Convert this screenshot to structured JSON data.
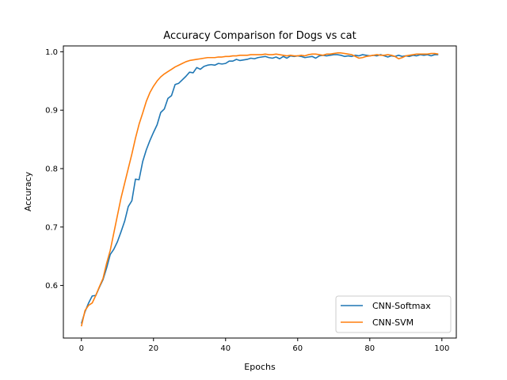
{
  "chart_data": {
    "type": "line",
    "title": "Accuracy Comparison for Dogs vs cat",
    "xlabel": "Epochs",
    "ylabel": "Accuracy",
    "xlim": [
      -5,
      104
    ],
    "ylim": [
      0.51,
      1.01
    ],
    "xticks": [
      0,
      20,
      40,
      60,
      80,
      100
    ],
    "xtick_labels": [
      "0",
      "20",
      "40",
      "60",
      "80",
      "100"
    ],
    "yticks": [
      0.6,
      0.7,
      0.8,
      0.9,
      1.0
    ],
    "ytick_labels": [
      "0.6",
      "0.7",
      "0.8",
      "0.9",
      "1.0"
    ],
    "grid": false,
    "legend_position": "bottom-right",
    "series": [
      {
        "name": "CNN-Softmax",
        "color": "#1f77b4",
        "values": [
          0.535,
          0.555,
          0.57,
          0.582,
          0.583,
          0.597,
          0.61,
          0.63,
          0.653,
          0.662,
          0.675,
          0.692,
          0.71,
          0.735,
          0.745,
          0.782,
          0.781,
          0.812,
          0.832,
          0.848,
          0.862,
          0.875,
          0.896,
          0.902,
          0.92,
          0.925,
          0.944,
          0.946,
          0.952,
          0.958,
          0.965,
          0.964,
          0.973,
          0.97,
          0.975,
          0.977,
          0.978,
          0.977,
          0.98,
          0.979,
          0.98,
          0.984,
          0.984,
          0.987,
          0.985,
          0.986,
          0.987,
          0.989,
          0.988,
          0.99,
          0.991,
          0.992,
          0.99,
          0.989,
          0.991,
          0.988,
          0.992,
          0.989,
          0.993,
          0.992,
          0.993,
          0.992,
          0.99,
          0.991,
          0.992,
          0.989,
          0.993,
          0.994,
          0.993,
          0.994,
          0.995,
          0.995,
          0.994,
          0.992,
          0.993,
          0.992,
          0.994,
          0.993,
          0.995,
          0.994,
          0.993,
          0.994,
          0.993,
          0.995,
          0.993,
          0.991,
          0.993,
          0.992,
          0.994,
          0.992,
          0.993,
          0.992,
          0.994,
          0.993,
          0.995,
          0.994,
          0.995,
          0.993,
          0.995,
          0.995
        ]
      },
      {
        "name": "CNN-SVM",
        "color": "#ff7f0e",
        "values": [
          0.53,
          0.557,
          0.566,
          0.57,
          0.583,
          0.598,
          0.612,
          0.638,
          0.66,
          0.69,
          0.72,
          0.75,
          0.775,
          0.8,
          0.825,
          0.852,
          0.876,
          0.895,
          0.915,
          0.93,
          0.941,
          0.95,
          0.957,
          0.962,
          0.966,
          0.97,
          0.974,
          0.977,
          0.98,
          0.983,
          0.985,
          0.986,
          0.987,
          0.988,
          0.989,
          0.99,
          0.99,
          0.99,
          0.991,
          0.991,
          0.992,
          0.992,
          0.993,
          0.993,
          0.994,
          0.994,
          0.994,
          0.995,
          0.995,
          0.995,
          0.995,
          0.996,
          0.995,
          0.995,
          0.996,
          0.995,
          0.994,
          0.993,
          0.994,
          0.993,
          0.993,
          0.994,
          0.993,
          0.995,
          0.996,
          0.996,
          0.995,
          0.994,
          0.996,
          0.996,
          0.997,
          0.998,
          0.998,
          0.997,
          0.996,
          0.995,
          0.992,
          0.989,
          0.99,
          0.992,
          0.993,
          0.994,
          0.995,
          0.994,
          0.994,
          0.995,
          0.994,
          0.992,
          0.988,
          0.99,
          0.993,
          0.994,
          0.995,
          0.996,
          0.996,
          0.996,
          0.996,
          0.997,
          0.997,
          0.996
        ]
      }
    ]
  }
}
